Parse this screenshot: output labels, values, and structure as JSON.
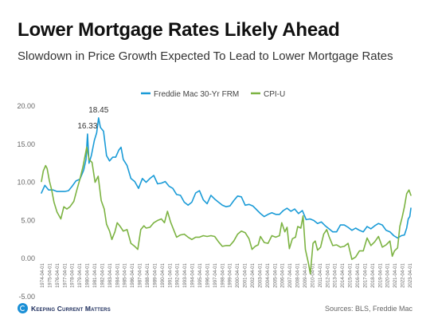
{
  "header": {
    "title": "Lower Mortgage Rates Likely Ahead",
    "subtitle": "Slowdown in Price Growth Expected To Lead to Lower Mortgage Rates"
  },
  "footer": {
    "logo_text": "Keeping Current Matters",
    "source": "Sources: BLS, Freddie Mac"
  },
  "colors": {
    "frm": "#1a9bd7",
    "cpi": "#7cb342",
    "axis_text": "#666666",
    "grid": "#e5e5e5"
  },
  "chart_data": {
    "type": "line",
    "legend_position": "top-center",
    "ylim": [
      -5,
      20
    ],
    "yticks": [
      "20.00",
      "15.00",
      "10.00",
      "5.00",
      "0.00",
      "-5.00"
    ],
    "ytick_values": [
      20,
      15,
      10,
      5,
      0,
      -5
    ],
    "grid": false,
    "xlim": [
      1974.25,
      2022.75
    ],
    "xticks": [
      "1974-04-01",
      "1975-04-01",
      "1976-04-01",
      "1977-04-01",
      "1978-04-01",
      "1979-04-01",
      "1980-04-01",
      "1981-04-01",
      "1982-04-01",
      "1983-04-01",
      "1984-04-01",
      "1985-04-01",
      "1986-04-01",
      "1987-04-01",
      "1988-04-01",
      "1989-04-01",
      "1990-04-01",
      "1991-04-01",
      "1992-04-01",
      "1993-04-01",
      "1994-04-01",
      "1995-04-01",
      "1996-04-01",
      "1997-04-01",
      "1998-04-01",
      "1999-04-01",
      "2000-04-01",
      "2001-04-01",
      "2002-04-01",
      "2003-04-01",
      "2004-04-01",
      "2005-04-01",
      "2006-04-01",
      "2007-04-01",
      "2008-04-01",
      "2009-04-01",
      "2010-04-01",
      "2011-04-01",
      "2012-04-01",
      "2013-04-01",
      "2014-04-01",
      "2015-04-01",
      "2016-04-01",
      "2017-04-01",
      "2018-04-01",
      "2019-04-01",
      "2020-04-01",
      "2021-04-01",
      "2022-04-01",
      "2023-04-01"
    ],
    "annotations": [
      {
        "text": "16.33",
        "x": 1980.3,
        "y": 16.33
      },
      {
        "text": "18.45",
        "x": 1981.75,
        "y": 18.45
      }
    ],
    "series": [
      {
        "name": "Freddie Mac 30-Yr FRM",
        "color": "#1a9bd7",
        "points": [
          [
            1974.25,
            8.6
          ],
          [
            1974.7,
            9.6
          ],
          [
            1975.2,
            9.0
          ],
          [
            1975.8,
            9.0
          ],
          [
            1976.3,
            8.8
          ],
          [
            1976.8,
            8.8
          ],
          [
            1977.3,
            8.8
          ],
          [
            1977.8,
            8.9
          ],
          [
            1978.3,
            9.5
          ],
          [
            1978.8,
            10.2
          ],
          [
            1979.3,
            10.4
          ],
          [
            1979.8,
            11.6
          ],
          [
            1980.1,
            13.0
          ],
          [
            1980.3,
            16.33
          ],
          [
            1980.5,
            12.5
          ],
          [
            1980.8,
            13.5
          ],
          [
            1981.2,
            15.5
          ],
          [
            1981.5,
            16.5
          ],
          [
            1981.75,
            18.45
          ],
          [
            1982.0,
            17.2
          ],
          [
            1982.4,
            16.7
          ],
          [
            1982.8,
            13.5
          ],
          [
            1983.2,
            12.8
          ],
          [
            1983.6,
            13.3
          ],
          [
            1984.0,
            13.3
          ],
          [
            1984.4,
            14.2
          ],
          [
            1984.7,
            14.6
          ],
          [
            1985.0,
            13.0
          ],
          [
            1985.5,
            12.2
          ],
          [
            1986.0,
            10.5
          ],
          [
            1986.5,
            10.1
          ],
          [
            1987.0,
            9.2
          ],
          [
            1987.5,
            10.5
          ],
          [
            1988.0,
            10.0
          ],
          [
            1988.5,
            10.5
          ],
          [
            1989.0,
            10.9
          ],
          [
            1989.5,
            9.8
          ],
          [
            1990.0,
            9.9
          ],
          [
            1990.5,
            10.1
          ],
          [
            1991.0,
            9.5
          ],
          [
            1991.5,
            9.2
          ],
          [
            1992.0,
            8.4
          ],
          [
            1992.5,
            8.3
          ],
          [
            1993.0,
            7.4
          ],
          [
            1993.5,
            7.0
          ],
          [
            1994.0,
            7.4
          ],
          [
            1994.5,
            8.6
          ],
          [
            1995.0,
            8.9
          ],
          [
            1995.5,
            7.7
          ],
          [
            1996.0,
            7.2
          ],
          [
            1996.5,
            8.3
          ],
          [
            1997.0,
            7.8
          ],
          [
            1997.5,
            7.4
          ],
          [
            1998.0,
            7.0
          ],
          [
            1998.5,
            6.8
          ],
          [
            1999.0,
            6.9
          ],
          [
            1999.5,
            7.6
          ],
          [
            2000.0,
            8.2
          ],
          [
            2000.5,
            8.1
          ],
          [
            2001.0,
            7.0
          ],
          [
            2001.5,
            7.1
          ],
          [
            2002.0,
            6.9
          ],
          [
            2002.5,
            6.4
          ],
          [
            2003.0,
            5.9
          ],
          [
            2003.5,
            5.5
          ],
          [
            2004.0,
            5.8
          ],
          [
            2004.5,
            6.0
          ],
          [
            2005.0,
            5.8
          ],
          [
            2005.5,
            5.8
          ],
          [
            2006.0,
            6.3
          ],
          [
            2006.5,
            6.6
          ],
          [
            2007.0,
            6.2
          ],
          [
            2007.5,
            6.5
          ],
          [
            2008.0,
            5.9
          ],
          [
            2008.5,
            6.3
          ],
          [
            2009.0,
            5.1
          ],
          [
            2009.5,
            5.2
          ],
          [
            2010.0,
            5.0
          ],
          [
            2010.5,
            4.6
          ],
          [
            2011.0,
            4.8
          ],
          [
            2011.5,
            4.3
          ],
          [
            2012.0,
            3.9
          ],
          [
            2012.5,
            3.5
          ],
          [
            2013.0,
            3.5
          ],
          [
            2013.5,
            4.4
          ],
          [
            2014.0,
            4.4
          ],
          [
            2014.5,
            4.1
          ],
          [
            2015.0,
            3.7
          ],
          [
            2015.5,
            4.0
          ],
          [
            2016.0,
            3.7
          ],
          [
            2016.5,
            3.5
          ],
          [
            2017.0,
            4.2
          ],
          [
            2017.5,
            3.9
          ],
          [
            2018.0,
            4.3
          ],
          [
            2018.5,
            4.6
          ],
          [
            2019.0,
            4.4
          ],
          [
            2019.5,
            3.7
          ],
          [
            2020.0,
            3.5
          ],
          [
            2020.5,
            3.0
          ],
          [
            2021.0,
            2.7
          ],
          [
            2021.5,
            3.0
          ],
          [
            2021.9,
            3.1
          ],
          [
            2022.2,
            4.0
          ],
          [
            2022.4,
            5.2
          ],
          [
            2022.6,
            5.5
          ],
          [
            2022.75,
            6.6
          ]
        ]
      },
      {
        "name": "CPI-U",
        "color": "#7cb342",
        "points": [
          [
            1974.25,
            10.1
          ],
          [
            1974.5,
            11.5
          ],
          [
            1974.8,
            12.2
          ],
          [
            1975.0,
            11.8
          ],
          [
            1975.3,
            10.2
          ],
          [
            1975.6,
            9.0
          ],
          [
            1975.9,
            7.4
          ],
          [
            1976.3,
            6.1
          ],
          [
            1976.8,
            5.2
          ],
          [
            1977.2,
            6.8
          ],
          [
            1977.6,
            6.5
          ],
          [
            1978.0,
            6.8
          ],
          [
            1978.5,
            7.5
          ],
          [
            1978.9,
            9.0
          ],
          [
            1979.3,
            10.4
          ],
          [
            1979.7,
            12.0
          ],
          [
            1980.2,
            14.6
          ],
          [
            1980.5,
            13.0
          ],
          [
            1980.9,
            12.6
          ],
          [
            1981.3,
            10.0
          ],
          [
            1981.7,
            10.8
          ],
          [
            1982.1,
            7.6
          ],
          [
            1982.5,
            6.5
          ],
          [
            1982.8,
            4.5
          ],
          [
            1983.2,
            3.6
          ],
          [
            1983.5,
            2.5
          ],
          [
            1983.9,
            3.5
          ],
          [
            1984.2,
            4.7
          ],
          [
            1984.6,
            4.2
          ],
          [
            1985.0,
            3.6
          ],
          [
            1985.5,
            3.8
          ],
          [
            1986.0,
            2.0
          ],
          [
            1986.5,
            1.6
          ],
          [
            1986.9,
            1.2
          ],
          [
            1987.3,
            3.8
          ],
          [
            1987.7,
            4.3
          ],
          [
            1988.0,
            4.0
          ],
          [
            1988.5,
            4.1
          ],
          [
            1989.0,
            4.7
          ],
          [
            1989.5,
            5.0
          ],
          [
            1990.0,
            5.2
          ],
          [
            1990.4,
            4.7
          ],
          [
            1990.8,
            6.2
          ],
          [
            1991.2,
            4.8
          ],
          [
            1991.6,
            3.8
          ],
          [
            1992.0,
            2.8
          ],
          [
            1992.5,
            3.1
          ],
          [
            1993.0,
            3.2
          ],
          [
            1993.5,
            2.8
          ],
          [
            1994.0,
            2.5
          ],
          [
            1994.5,
            2.8
          ],
          [
            1995.0,
            2.8
          ],
          [
            1995.5,
            3.0
          ],
          [
            1996.0,
            2.9
          ],
          [
            1996.5,
            3.0
          ],
          [
            1997.0,
            2.9
          ],
          [
            1997.5,
            2.2
          ],
          [
            1998.0,
            1.6
          ],
          [
            1998.5,
            1.7
          ],
          [
            1999.0,
            1.7
          ],
          [
            1999.5,
            2.3
          ],
          [
            2000.0,
            3.2
          ],
          [
            2000.5,
            3.6
          ],
          [
            2001.0,
            3.4
          ],
          [
            2001.5,
            2.6
          ],
          [
            2001.9,
            1.2
          ],
          [
            2002.3,
            1.6
          ],
          [
            2002.7,
            1.8
          ],
          [
            2003.0,
            2.9
          ],
          [
            2003.5,
            2.1
          ],
          [
            2004.0,
            2.0
          ],
          [
            2004.5,
            3.0
          ],
          [
            2005.0,
            2.8
          ],
          [
            2005.5,
            3.0
          ],
          [
            2005.8,
            4.7
          ],
          [
            2006.2,
            3.5
          ],
          [
            2006.5,
            4.1
          ],
          [
            2006.8,
            1.3
          ],
          [
            2007.2,
            2.6
          ],
          [
            2007.6,
            2.8
          ],
          [
            2007.9,
            4.2
          ],
          [
            2008.3,
            4.0
          ],
          [
            2008.6,
            5.6
          ],
          [
            2008.9,
            1.2
          ],
          [
            2009.3,
            -0.6
          ],
          [
            2009.55,
            -2.0
          ],
          [
            2009.9,
            2.0
          ],
          [
            2010.2,
            2.3
          ],
          [
            2010.5,
            1.1
          ],
          [
            2010.9,
            1.5
          ],
          [
            2011.3,
            3.2
          ],
          [
            2011.7,
            3.8
          ],
          [
            2012.0,
            2.9
          ],
          [
            2012.5,
            1.7
          ],
          [
            2013.0,
            1.8
          ],
          [
            2013.5,
            1.5
          ],
          [
            2014.0,
            1.6
          ],
          [
            2014.5,
            2.0
          ],
          [
            2015.0,
            -0.1
          ],
          [
            2015.5,
            0.2
          ],
          [
            2016.0,
            1.0
          ],
          [
            2016.5,
            1.0
          ],
          [
            2017.0,
            2.7
          ],
          [
            2017.5,
            1.7
          ],
          [
            2018.0,
            2.2
          ],
          [
            2018.5,
            2.9
          ],
          [
            2019.0,
            1.5
          ],
          [
            2019.5,
            1.8
          ],
          [
            2020.0,
            2.3
          ],
          [
            2020.3,
            0.3
          ],
          [
            2020.6,
            1.0
          ],
          [
            2021.0,
            1.4
          ],
          [
            2021.3,
            4.2
          ],
          [
            2021.6,
            5.4
          ],
          [
            2021.9,
            6.8
          ],
          [
            2022.2,
            8.5
          ],
          [
            2022.5,
            9.0
          ],
          [
            2022.75,
            8.3
          ]
        ]
      }
    ]
  }
}
